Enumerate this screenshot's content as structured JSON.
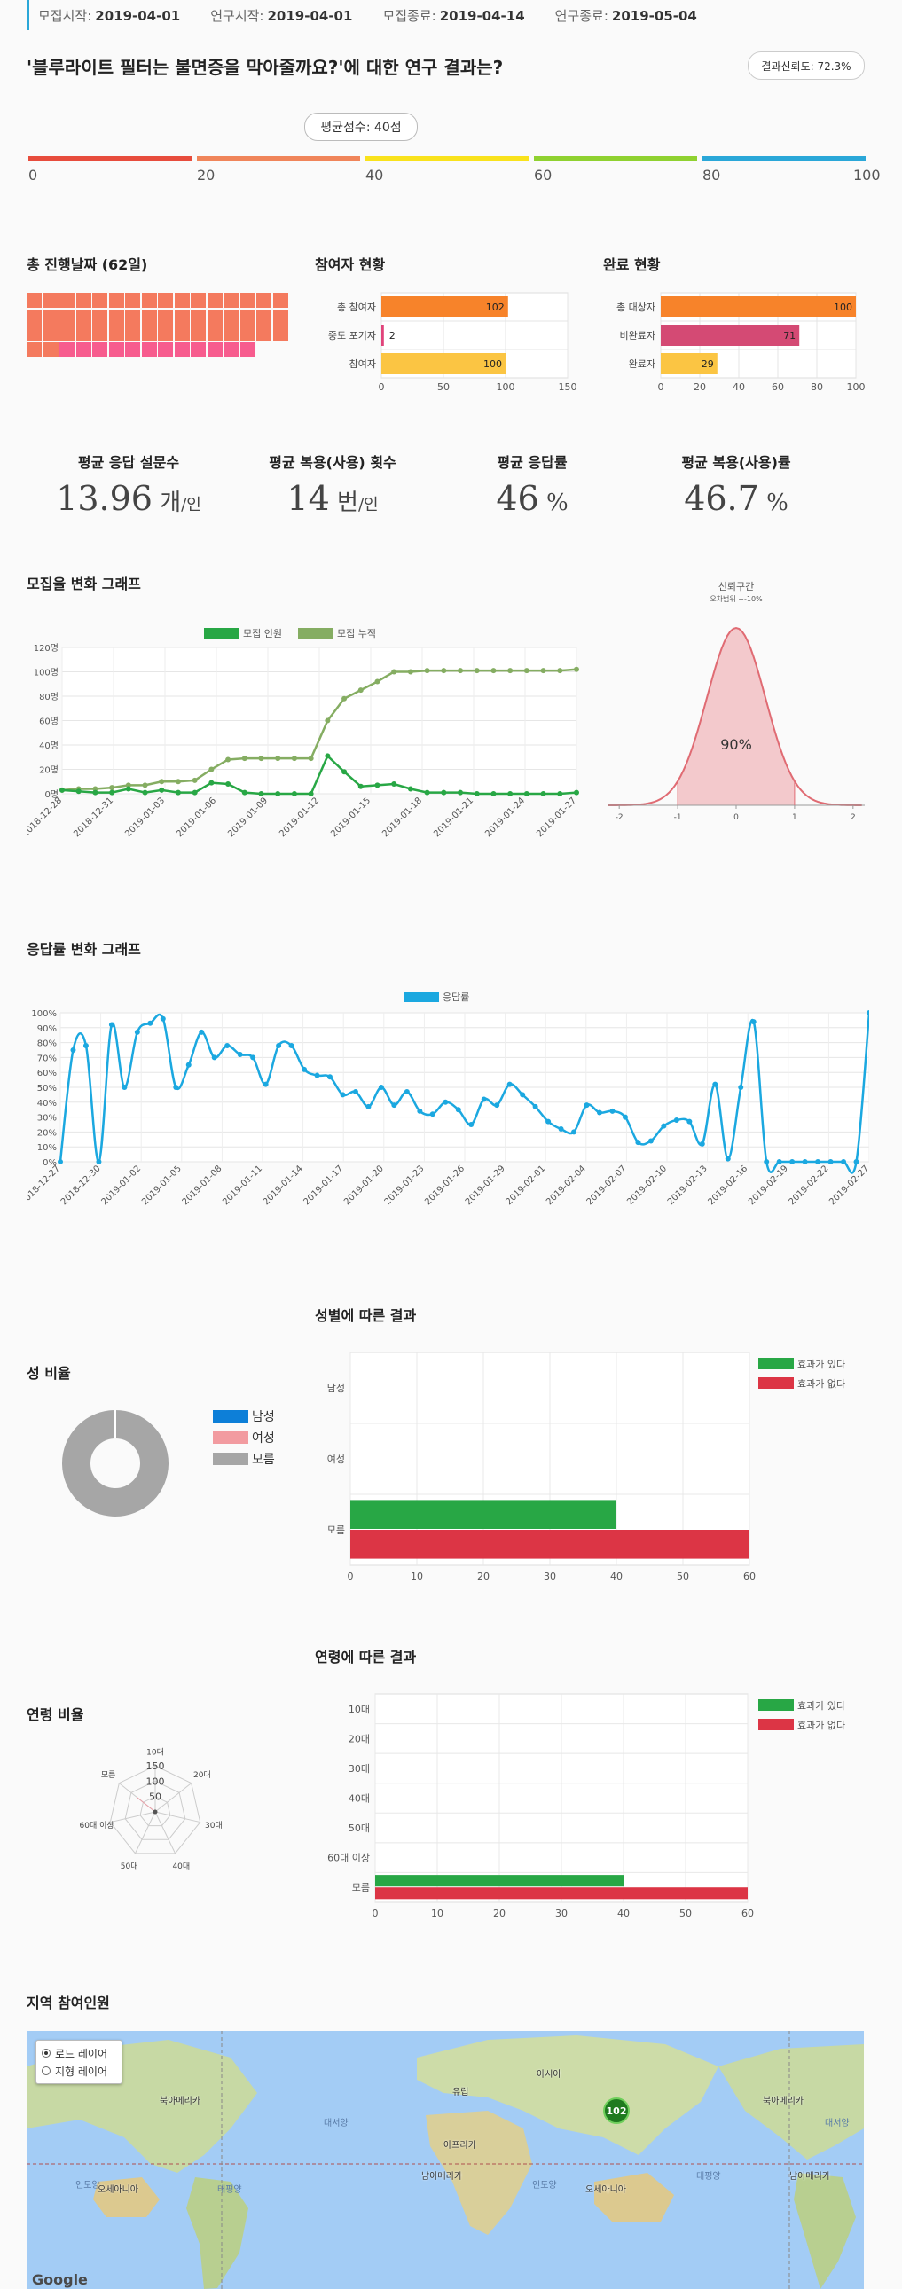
{
  "topbar": [
    {
      "label": "모집시작:",
      "value": "2019-04-01"
    },
    {
      "label": "연구시작:",
      "value": "2019-04-01"
    },
    {
      "label": "모집종료:",
      "value": "2019-04-14"
    },
    {
      "label": "연구종료:",
      "value": "2019-05-04"
    }
  ],
  "title": "'블루라이트 필터는 불면증을 막아줄까요?'에 대한 연구 결과는?",
  "badge": "결과신뢰도: 72.3%",
  "avg_score_label": "평균점수: 40점",
  "avg_score_value": 40,
  "scale": {
    "ticks": [
      "0",
      "20",
      "40",
      "60",
      "80",
      "100"
    ],
    "colors": [
      "#e74c3c",
      "#f0855a",
      "#f9e21c",
      "#8fd130",
      "#2aa7d8"
    ]
  },
  "days": {
    "title": "총 진행날짜 (62일)",
    "total": 62,
    "elapsed": 50,
    "color_a": "#f47a5e",
    "color_b": "#f75c8e"
  },
  "participants": {
    "title": "참여자 현황",
    "chart_data": {
      "type": "bar",
      "orientation": "horizontal",
      "categories": [
        "총 참여자",
        "중도 포기자",
        "참여자"
      ],
      "values": [
        102,
        2,
        100
      ],
      "colors": [
        "#f7832a",
        "#e0437a",
        "#fbc543"
      ],
      "xlim": [
        0,
        150
      ],
      "ticks": [
        "0",
        "50",
        "100",
        "150"
      ]
    }
  },
  "completion": {
    "title": "완료 현황",
    "chart_data": {
      "type": "bar",
      "orientation": "horizontal",
      "categories": [
        "총 대상자",
        "비완료자",
        "완료자"
      ],
      "values": [
        100,
        71,
        29
      ],
      "colors": [
        "#f7832a",
        "#d44a74",
        "#fbc543"
      ],
      "xlim": [
        0,
        100
      ],
      "ticks": [
        "0",
        "20",
        "40",
        "60",
        "80",
        "100"
      ]
    }
  },
  "stats": [
    {
      "title": "평균 응답 설문수",
      "value": "13.96",
      "unit": " 개",
      "sub": "/인"
    },
    {
      "title": "평균 복용(사용) 횟수",
      "value": "14",
      "unit": " 번",
      "sub": "/인"
    },
    {
      "title": "평균 응답률",
      "value": "46",
      "unit": " %",
      "sub": ""
    },
    {
      "title": "평균 복용(사용)률",
      "value": "46.7",
      "unit": " %",
      "sub": ""
    }
  ],
  "recruit": {
    "title": "모집율 변화 그래프",
    "chart_data": {
      "type": "line",
      "legend": [
        "모집 인원",
        "모집 누적"
      ],
      "colors": [
        "#28a745",
        "#85ad62"
      ],
      "yticks": [
        "0명",
        "20명",
        "40명",
        "60명",
        "80명",
        "100명",
        "120명"
      ],
      "ylim": [
        0,
        120
      ],
      "xticks": [
        "2018-12-28",
        "2018-12-31",
        "2019-01-03",
        "2019-01-06",
        "2019-01-09",
        "2019-01-12",
        "2019-01-15",
        "2019-01-18",
        "2019-01-21",
        "2019-01-24",
        "2019-01-27"
      ],
      "series": [
        {
          "name": "모집 인원",
          "values": [
            3,
            2,
            1,
            1,
            4,
            1,
            3,
            1,
            1,
            9,
            8,
            1,
            0,
            0,
            0,
            0,
            31,
            18,
            6,
            7,
            8,
            4,
            1,
            1,
            1,
            0,
            0,
            0,
            0,
            0,
            0,
            1
          ]
        },
        {
          "name": "모집 누적",
          "values": [
            3,
            4,
            4,
            5,
            7,
            7,
            10,
            10,
            11,
            20,
            28,
            29,
            29,
            29,
            29,
            29,
            60,
            78,
            85,
            92,
            100,
            100,
            101,
            101,
            101,
            101,
            101,
            101,
            101,
            101,
            101,
            102
          ]
        }
      ]
    }
  },
  "confidence": {
    "title": "신뢰구간",
    "subtitle": "오차범위 +-10%",
    "center_label": "90%",
    "ticks": [
      "-2",
      "-1",
      "0",
      "1",
      "2"
    ]
  },
  "response": {
    "title": "응답률 변화 그래프",
    "chart_data": {
      "type": "line",
      "legend": [
        "응답률"
      ],
      "color": "#1ba8e0",
      "yticks": [
        "0%",
        "10%",
        "20%",
        "30%",
        "40%",
        "50%",
        "60%",
        "70%",
        "80%",
        "90%",
        "100%"
      ],
      "ylim": [
        0,
        100
      ],
      "xticks": [
        "2018-12-27",
        "2018-12-30",
        "2019-01-02",
        "2019-01-05",
        "2019-01-08",
        "2019-01-11",
        "2019-01-14",
        "2019-01-17",
        "2019-01-20",
        "2019-01-23",
        "2019-01-26",
        "2019-01-29",
        "2019-02-01",
        "2019-02-04",
        "2019-02-07",
        "2019-02-10",
        "2019-02-13",
        "2019-02-16",
        "2019-02-19",
        "2019-02-22",
        "2019-02-27"
      ],
      "values": [
        0,
        75,
        78,
        0,
        92,
        50,
        87,
        93,
        96,
        50,
        65,
        87,
        70,
        78,
        72,
        70,
        52,
        78,
        78,
        62,
        58,
        57,
        45,
        47,
        37,
        50,
        38,
        47,
        34,
        32,
        40,
        35,
        25,
        42,
        38,
        52,
        45,
        37,
        27,
        22,
        20,
        38,
        33,
        34,
        30,
        13,
        14,
        24,
        28,
        27,
        12,
        52,
        2,
        50,
        94,
        0,
        0,
        0,
        0,
        0,
        0,
        0,
        0,
        100
      ]
    }
  },
  "gender": {
    "ratio_title": "성 비율",
    "legend": [
      {
        "label": "남성",
        "color": "#0d7fd8"
      },
      {
        "label": "여성",
        "color": "#f29ba0"
      },
      {
        "label": "모름",
        "color": "#a6a6a6"
      }
    ],
    "pie_values": [
      0,
      0,
      100
    ],
    "result_title": "성별에 따른 결과",
    "chart_data": {
      "type": "bar",
      "orientation": "horizontal",
      "categories": [
        "남성",
        "여성",
        "모름"
      ],
      "series": [
        {
          "name": "효과가 있다",
          "color": "#28a745",
          "values": [
            0,
            0,
            40
          ]
        },
        {
          "name": "효과가 없다",
          "color": "#dc3545",
          "values": [
            0,
            0,
            60
          ]
        }
      ],
      "xlim": [
        0,
        60
      ],
      "ticks": [
        "0",
        "10",
        "20",
        "30",
        "40",
        "50",
        "60"
      ]
    }
  },
  "age": {
    "ratio_title": "연령 비율",
    "radar_labels": [
      "10대",
      "20대",
      "30대",
      "40대",
      "50대",
      "60대 이상",
      "모름"
    ],
    "radar_ticks": [
      "50",
      "100",
      "150"
    ],
    "radar_values": [
      0,
      0,
      0,
      0,
      0,
      0,
      100
    ],
    "result_title": "연령에 따른 결과",
    "chart_data": {
      "type": "bar",
      "orientation": "horizontal",
      "categories": [
        "10대",
        "20대",
        "30대",
        "40대",
        "50대",
        "60대 이상",
        "모름"
      ],
      "series": [
        {
          "name": "효과가 있다",
          "color": "#28a745",
          "values": [
            0,
            0,
            0,
            0,
            0,
            0,
            40
          ]
        },
        {
          "name": "효과가 없다",
          "color": "#dc3545",
          "values": [
            0,
            0,
            0,
            0,
            0,
            0,
            60
          ]
        }
      ],
      "xlim": [
        0,
        60
      ],
      "ticks": [
        "0",
        "10",
        "20",
        "30",
        "40",
        "50",
        "60"
      ]
    }
  },
  "map": {
    "title": "지역 참여인원",
    "layers": [
      "로드 레이어",
      "지형 레이어"
    ],
    "marker": "102",
    "labels": [
      "북아메리카",
      "유럽",
      "아시아",
      "아프리카",
      "남아메리카",
      "오세아니아",
      "북아메리카",
      "남아메리카",
      "오세아니아"
    ],
    "seas": [
      "대서양",
      "태평양",
      "인도양",
      "인도양",
      "태평양",
      "대서양"
    ],
    "logo": "Google"
  }
}
